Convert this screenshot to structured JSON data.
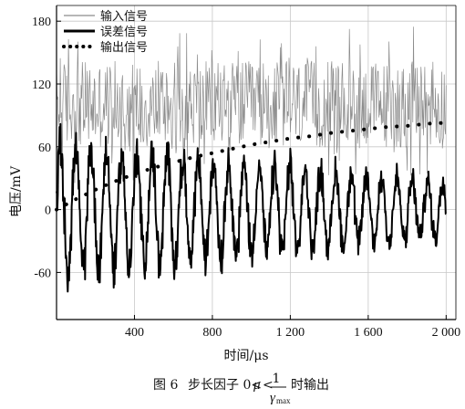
{
  "chart_data": {
    "type": "line",
    "xlabel": "时间/μs",
    "ylabel": "电压/mV",
    "xlim": [
      0,
      2050
    ],
    "ylim": [
      -105,
      195
    ],
    "xticks": [
      400,
      800,
      1200,
      1600,
      2000
    ],
    "xtick_labels": [
      "400",
      "800",
      "1 200",
      "1 600",
      "2 000"
    ],
    "yticks": [
      -60,
      0,
      60,
      120,
      180
    ],
    "ytick_labels": [
      "-60",
      "0",
      "60",
      "120",
      "180"
    ],
    "grid": true,
    "legend_position": "top-left",
    "series": [
      {
        "name": "输入信号",
        "style": "thin-gray",
        "color": "#8c8c8c",
        "description_values": {
          "mean": 100,
          "min": 25,
          "max": 175,
          "samples": 620
        }
      },
      {
        "name": "误差信号",
        "style": "thick-black",
        "color": "#000000",
        "description_values": {
          "x_start": 0,
          "x_end": 2000,
          "initial_amplitude": 60,
          "final_amplitude": 25,
          "min": -88,
          "max": 82
        }
      },
      {
        "name": "输出信号",
        "style": "dotted-black",
        "color": "#000000",
        "x": [
          0,
          100,
          200,
          300,
          400,
          500,
          600,
          700,
          800,
          900,
          1000,
          1100,
          1200,
          1300,
          1400,
          1500,
          1600,
          1700,
          1800,
          1900,
          2000
        ],
        "y": [
          0,
          10,
          19,
          27,
          34,
          40,
          45,
          50,
          54,
          58,
          62,
          65,
          68,
          70,
          73,
          75,
          77,
          79,
          80,
          82,
          83
        ]
      }
    ]
  },
  "caption": {
    "prefix": "图 6",
    "text": "步长因子 0<",
    "mu": "μ",
    "lt": "<",
    "numerator": "1",
    "denominator": "γ",
    "denominator_sub": "max",
    "suffix": "时输出"
  }
}
